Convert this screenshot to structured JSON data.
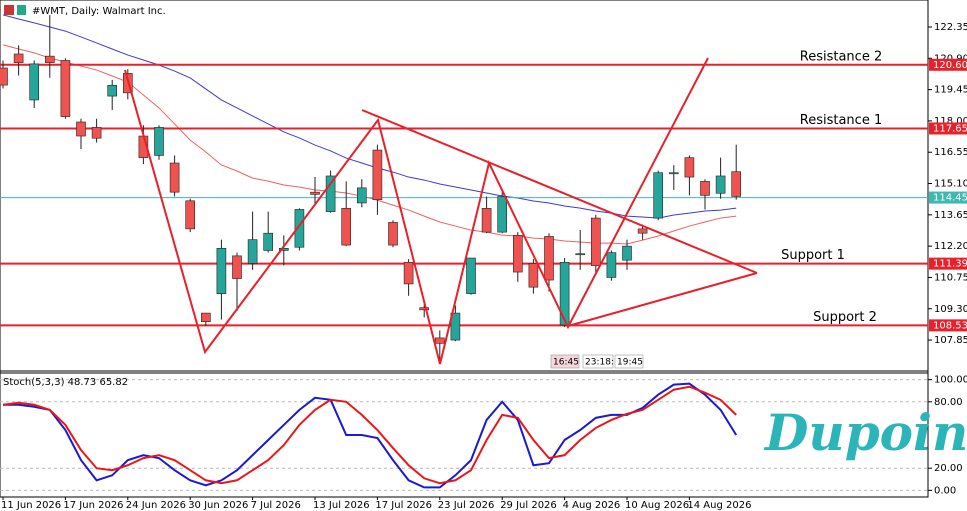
{
  "chart_data": [
    {
      "type": "candlestick",
      "title": "#WMT, Daily: Walmart Inc.",
      "categories": [
        "11 Jun 2026",
        null,
        null,
        null,
        "17 Jun 2026",
        null,
        null,
        null,
        "24 Jun 2026",
        null,
        null,
        null,
        "30 Jun 2026",
        null,
        null,
        null,
        "7 Jul 2026",
        null,
        null,
        null,
        "13 Jul 2026",
        null,
        null,
        null,
        "17 Jul 2026",
        null,
        null,
        null,
        "23 Jul 2026",
        null,
        null,
        null,
        "29 Jul 2026",
        null,
        null,
        null,
        "4 Aug 2026",
        null,
        null,
        null,
        "10 Aug 2026",
        null,
        null,
        null,
        "14 Aug 2026",
        null,
        null,
        null
      ],
      "open": [
        120.45,
        121.1,
        118.97,
        121.0,
        120.8,
        117.95,
        117.7,
        119.15,
        120.2,
        117.3,
        116.4,
        116.05,
        114.3,
        109.1,
        110.0,
        111.75,
        111.4,
        112.0,
        112.0,
        112.15,
        114.7,
        113.8,
        113.95,
        114.2,
        116.65,
        113.3,
        111.45,
        109.35,
        107.95,
        107.85,
        110.0,
        113.95,
        112.85,
        112.7,
        111.4,
        112.65,
        108.55,
        111.8,
        113.5,
        110.75,
        111.55,
        113.0,
        113.5,
        115.55,
        116.3,
        115.2,
        114.65,
        115.65
      ],
      "high": [
        120.8,
        121.5,
        120.8,
        122.9,
        120.9,
        118.1,
        118.1,
        119.9,
        120.4,
        117.8,
        117.8,
        116.4,
        114.4,
        109.1,
        112.5,
        111.9,
        113.8,
        113.8,
        112.7,
        113.95,
        115.4,
        115.7,
        115.2,
        115.3,
        116.9,
        113.4,
        111.6,
        109.5,
        108.3,
        109.45,
        111.65,
        114.5,
        114.7,
        112.85,
        111.6,
        112.8,
        111.65,
        112.95,
        113.65,
        112.0,
        112.5,
        113.2,
        115.7,
        115.95,
        116.4,
        115.3,
        116.3,
        116.9
      ],
      "low": [
        119.5,
        120.1,
        118.6,
        120.0,
        118.1,
        116.7,
        117.0,
        118.5,
        119.0,
        116.0,
        116.2,
        114.5,
        112.85,
        108.5,
        108.8,
        109.2,
        111.1,
        111.9,
        111.3,
        112.0,
        114.1,
        113.75,
        112.2,
        114.0,
        113.65,
        112.15,
        109.9,
        108.9,
        106.95,
        107.8,
        109.95,
        112.8,
        112.8,
        110.55,
        110.0,
        110.1,
        108.45,
        111.1,
        111.0,
        110.6,
        111.1,
        112.5,
        113.4,
        114.8,
        114.55,
        113.9,
        114.4,
        114.35
      ],
      "close": [
        119.66,
        120.7,
        120.64,
        120.7,
        118.2,
        117.3,
        117.2,
        119.65,
        119.3,
        116.3,
        117.7,
        114.7,
        113.0,
        108.7,
        112.1,
        110.7,
        112.5,
        112.8,
        112.1,
        113.9,
        114.6,
        115.45,
        112.25,
        114.9,
        114.35,
        112.25,
        110.45,
        109.25,
        107.7,
        109.1,
        111.65,
        112.85,
        114.5,
        111.0,
        110.3,
        110.63,
        111.45,
        111.85,
        111.3,
        111.9,
        112.2,
        112.8,
        115.6,
        115.6,
        115.4,
        114.55,
        115.45,
        114.5
      ],
      "up_color": "#26a69a",
      "down_color": "#ef5350",
      "moving_averages": [
        {
          "color": "#3b3bd6",
          "values": [
            122.91,
            122.72,
            122.54,
            122.35,
            122.16,
            121.89,
            121.61,
            121.33,
            121.05,
            120.82,
            120.59,
            120.31,
            119.99,
            119.48,
            118.97,
            118.6,
            118.23,
            117.86,
            117.49,
            117.21,
            116.88,
            116.61,
            116.28,
            116.05,
            115.82,
            115.63,
            115.4,
            115.26,
            115.08,
            114.94,
            114.8,
            114.66,
            114.52,
            114.43,
            114.29,
            114.2,
            114.06,
            113.96,
            113.83,
            113.73,
            113.59,
            113.55,
            113.5,
            113.64,
            113.73,
            113.83,
            113.87,
            113.96
          ]
        },
        {
          "color": "#f06060",
          "values": [
            121.52,
            121.33,
            121.15,
            120.91,
            120.73,
            120.54,
            120.36,
            120.08,
            119.8,
            119.2,
            118.6,
            117.86,
            117.11,
            116.56,
            115.96,
            115.68,
            115.35,
            115.21,
            115.03,
            114.94,
            114.8,
            114.75,
            114.66,
            114.52,
            114.33,
            114.1,
            113.87,
            113.59,
            113.32,
            113.13,
            112.94,
            112.85,
            112.71,
            112.67,
            112.57,
            112.53,
            112.44,
            112.39,
            112.34,
            112.34,
            112.3,
            112.48,
            112.67,
            112.9,
            113.13,
            113.32,
            113.5,
            113.59
          ]
        }
      ],
      "ylim": [
        106.51,
        123.6
      ],
      "yticks": [
        122.35,
        {
          "value": 120.9,
          "label": "120.90"
        },
        119.45,
        {
          "value": 118.0,
          "label": "118.00"
        },
        116.55,
        {
          "value": 115.1,
          "label": "115.10"
        },
        113.65,
        {
          "value": 112.2,
          "label": "112.20"
        },
        110.75,
        {
          "value": 109.3,
          "label": "109.30"
        },
        107.85
      ],
      "levels": [
        {
          "value": 120.6,
          "label": "120.60",
          "name": "Resistance 2"
        },
        {
          "value": 117.65,
          "label": "117.65",
          "name": "Resistance 1"
        },
        {
          "value": 111.39,
          "label": "111.39",
          "name": "Support 1"
        },
        {
          "value": 108.53,
          "label": "108.53",
          "name": "Support 2"
        }
      ],
      "level_color": "#e8202a",
      "current_price": {
        "value": 114.45,
        "label": "114.45",
        "color": "#3fb8b0"
      },
      "time_labels": [
        "16:45",
        "23:18:",
        "19:45"
      ]
    },
    {
      "type": "line",
      "title": "Stoch(5,3,3) 48.73 65.82",
      "series": [
        {
          "color": "#1a1ad0",
          "values": [
            77.3,
            77.3,
            75.5,
            72.7,
            54.5,
            27.3,
            9.1,
            13.6,
            27.3,
            31.8,
            29.1,
            18.2,
            9.1,
            4.5,
            9.1,
            18.2,
            31.8,
            45.5,
            59.1,
            72.7,
            83.6,
            81.8,
            50,
            50,
            47.3,
            27.3,
            9.1,
            2.7,
            2.7,
            13.6,
            27.3,
            63.6,
            80,
            63.6,
            22.7,
            24.5,
            45.5,
            54.5,
            65.5,
            68.2,
            68.2,
            74.5,
            86.4,
            95.5,
            96.4,
            86.4,
            72.7,
            50
          ]
        },
        {
          "color": "#e81818",
          "values": [
            77.3,
            79.1,
            77.3,
            72.7,
            59.1,
            36.4,
            20,
            18.2,
            22.7,
            29.1,
            31.8,
            27.3,
            18.2,
            9.1,
            6.4,
            9.1,
            18.2,
            27.3,
            40.9,
            59.1,
            72.7,
            81.8,
            80,
            68.2,
            54.5,
            38.2,
            22.7,
            10.9,
            6.4,
            9.1,
            18.2,
            45.5,
            68.2,
            65.5,
            45.5,
            29.1,
            31.8,
            45.5,
            56.4,
            63.6,
            69.1,
            72.7,
            81.8,
            90.9,
            93.6,
            88.2,
            81.8,
            68.2
          ]
        }
      ],
      "ylim": [
        -6,
        106
      ],
      "yticks": [
        {
          "value": 100,
          "label": "100.00"
        },
        {
          "value": 80,
          "label": "80.00"
        },
        {
          "value": 20,
          "label": "20.00"
        },
        {
          "value": 0,
          "label": "0.00"
        }
      ],
      "grid": true
    }
  ],
  "logo": "Dupoin"
}
